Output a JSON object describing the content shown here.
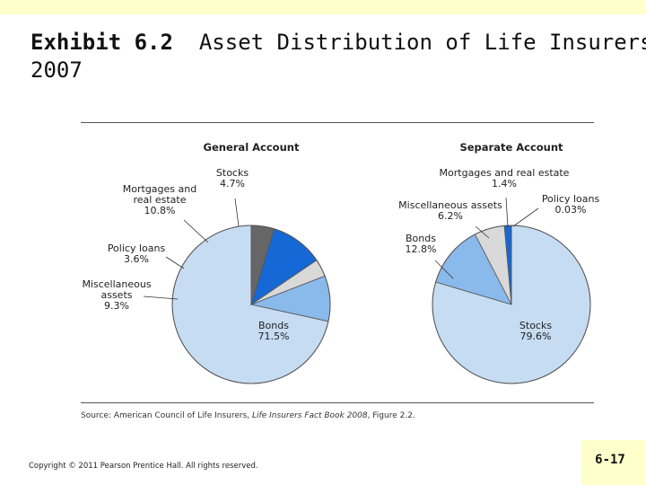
{
  "slide": {
    "title_prefix": "Exhibit 6.2",
    "title_main": "Asset Distribution of Life Insurers",
    "title_year": "2007",
    "source_prefix": "Source: American Council of Life Insurers, ",
    "source_book": "Life Insurers Fact Book 2008",
    "source_suffix": ", Figure 2.2.",
    "copyright": "Copyright © 2011 Pearson Prentice Hall. All rights reserved.",
    "slide_number": "6-17",
    "background_accent": "#ffffcc"
  },
  "chart_data": [
    {
      "type": "pie",
      "title": "General Account",
      "slices": [
        {
          "label": "Bonds",
          "value": 71.5,
          "display": "71.5%",
          "color": "#c6dcf2"
        },
        {
          "label": "Miscellaneous assets",
          "value": 9.3,
          "display": "9.3%",
          "color": "#8ab9eb"
        },
        {
          "label": "Policy loans",
          "value": 3.6,
          "display": "3.6%",
          "color": "#d9d9d9"
        },
        {
          "label": "Mortgages and real estate",
          "value": 10.8,
          "display": "10.8%",
          "color": "#1668d6"
        },
        {
          "label": "Stocks",
          "value": 4.7,
          "display": "4.7%",
          "color": "#666666"
        }
      ]
    },
    {
      "type": "pie",
      "title": "Separate Account",
      "slices": [
        {
          "label": "Stocks",
          "value": 79.6,
          "display": "79.6%",
          "color": "#c6dcf2"
        },
        {
          "label": "Bonds",
          "value": 12.8,
          "display": "12.8%",
          "color": "#8ab9eb"
        },
        {
          "label": "Miscellaneous assets",
          "value": 6.2,
          "display": "6.2%",
          "color": "#d9d9d9"
        },
        {
          "label": "Mortgages and real estate",
          "value": 1.4,
          "display": "1.4%",
          "color": "#1668d6"
        },
        {
          "label": "Policy loans",
          "value": 0.03,
          "display": "0.03%",
          "color": "#2a2a2a"
        }
      ]
    }
  ]
}
